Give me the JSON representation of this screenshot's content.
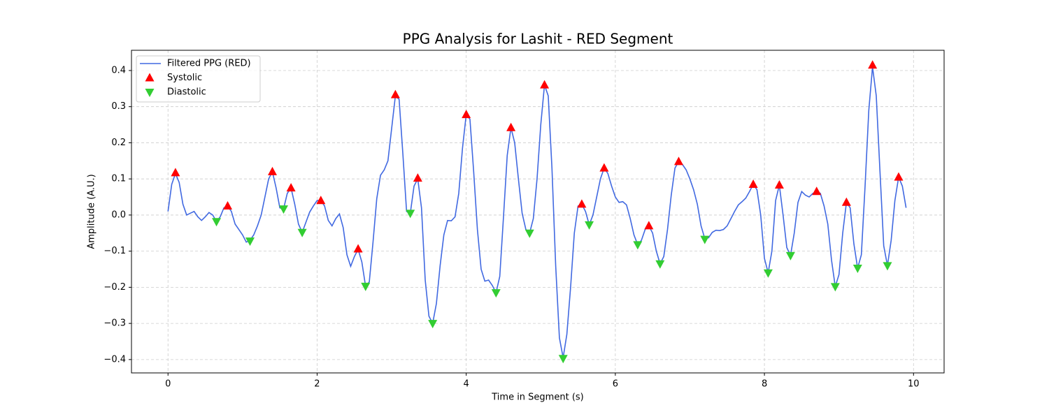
{
  "chart_data": {
    "type": "line",
    "title": "PPG Analysis for Lashit - RED Segment",
    "xlabel": "Time in Segment (s)",
    "ylabel": "Amplitude (A.U.)",
    "xlim": [
      -0.49,
      10.41
    ],
    "ylim": [
      -0.437,
      0.456
    ],
    "xticks": [
      0,
      2,
      4,
      6,
      8,
      10
    ],
    "yticks": [
      {
        "value": -0.4,
        "label": "−0.4"
      },
      {
        "value": -0.3,
        "label": "−0.3"
      },
      {
        "value": -0.2,
        "label": "−0.2"
      },
      {
        "value": -0.1,
        "label": "−0.1"
      },
      {
        "value": 0,
        "label": "0.0"
      },
      0.1,
      0.2,
      0.3,
      0.4
    ],
    "grid": true,
    "legend": "upper left",
    "series": [
      {
        "name": "Filtered PPG (RED)",
        "type": "line",
        "color": "#4169e1",
        "x": [
          0,
          0.05,
          0.1,
          0.15,
          0.2,
          0.25,
          0.3,
          0.35,
          0.4,
          0.45,
          0.5,
          0.55,
          0.6,
          0.65,
          0.7,
          0.75,
          0.8,
          0.85,
          0.9,
          0.95,
          1,
          1.05,
          1.1,
          1.15,
          1.2,
          1.25,
          1.3,
          1.35,
          1.4,
          1.45,
          1.5,
          1.55,
          1.6,
          1.65,
          1.7,
          1.75,
          1.8,
          1.85,
          1.9,
          1.95,
          2,
          2.05,
          2.1,
          2.15,
          2.2,
          2.25,
          2.3,
          2.35,
          2.4,
          2.45,
          2.5,
          2.55,
          2.6,
          2.65,
          2.7,
          2.75,
          2.8,
          2.85,
          2.9,
          2.95,
          3,
          3.05,
          3.1,
          3.15,
          3.2,
          3.25,
          3.3,
          3.35,
          3.4,
          3.45,
          3.5,
          3.55,
          3.6,
          3.65,
          3.7,
          3.75,
          3.8,
          3.85,
          3.9,
          3.95,
          4,
          4.05,
          4.1,
          4.15,
          4.2,
          4.25,
          4.3,
          4.35,
          4.4,
          4.45,
          4.5,
          4.55,
          4.6,
          4.65,
          4.7,
          4.75,
          4.8,
          4.85,
          4.9,
          4.95,
          5,
          5.05,
          5.1,
          5.15,
          5.2,
          5.25,
          5.3,
          5.35,
          5.4,
          5.45,
          5.5,
          5.55,
          5.6,
          5.65,
          5.7,
          5.75,
          5.8,
          5.85,
          5.9,
          5.95,
          6,
          6.05,
          6.1,
          6.15,
          6.2,
          6.25,
          6.3,
          6.35,
          6.4,
          6.45,
          6.5,
          6.55,
          6.6,
          6.65,
          6.7,
          6.75,
          6.8,
          6.85,
          6.9,
          6.95,
          7,
          7.05,
          7.1,
          7.15,
          7.2,
          7.25,
          7.3,
          7.35,
          7.4,
          7.45,
          7.5,
          7.55,
          7.6,
          7.65,
          7.7,
          7.75,
          7.8,
          7.85,
          7.9,
          7.95,
          8,
          8.05,
          8.1,
          8.15,
          8.2,
          8.25,
          8.3,
          8.35,
          8.4,
          8.45,
          8.5,
          8.55,
          8.6,
          8.65,
          8.7,
          8.75,
          8.8,
          8.85,
          8.9,
          8.95,
          9,
          9.05,
          9.1,
          9.15,
          9.2,
          9.25,
          9.3,
          9.35,
          9.4,
          9.45,
          9.5,
          9.55,
          9.6,
          9.65,
          9.7,
          9.75,
          9.8,
          9.85,
          9.9
        ],
        "values": [
          0.01,
          0.085,
          0.115,
          0.09,
          0.03,
          0.0,
          0.005,
          0.01,
          -0.005,
          -0.015,
          -0.005,
          0.007,
          0.0,
          -0.018,
          -0.005,
          0.02,
          0.025,
          0.01,
          -0.025,
          -0.04,
          -0.055,
          -0.075,
          -0.07,
          -0.055,
          -0.03,
          0.0,
          0.05,
          0.1,
          0.12,
          0.075,
          0.02,
          0.017,
          0.06,
          0.075,
          0.03,
          -0.025,
          -0.048,
          -0.02,
          0.008,
          0.025,
          0.04,
          0.04,
          0.025,
          -0.015,
          -0.03,
          -0.01,
          0.003,
          -0.035,
          -0.11,
          -0.142,
          -0.115,
          -0.095,
          -0.13,
          -0.197,
          -0.185,
          -0.075,
          0.045,
          0.11,
          0.125,
          0.15,
          0.24,
          0.33,
          0.32,
          0.17,
          0.01,
          0.005,
          0.08,
          0.1,
          0.02,
          -0.18,
          -0.28,
          -0.3,
          -0.245,
          -0.14,
          -0.055,
          -0.015,
          -0.016,
          -0.005,
          0.06,
          0.185,
          0.278,
          0.265,
          0.12,
          -0.04,
          -0.15,
          -0.183,
          -0.18,
          -0.195,
          -0.215,
          -0.17,
          -0.005,
          0.165,
          0.242,
          0.2,
          0.1,
          0.005,
          -0.04,
          -0.05,
          -0.01,
          0.1,
          0.25,
          0.36,
          0.33,
          0.13,
          -0.14,
          -0.34,
          -0.395,
          -0.33,
          -0.2,
          -0.05,
          0.025,
          0.03,
          0.01,
          -0.027,
          0.0,
          0.05,
          0.1,
          0.13,
          0.115,
          0.08,
          0.05,
          0.035,
          0.037,
          0.028,
          -0.01,
          -0.055,
          -0.082,
          -0.07,
          -0.04,
          -0.03,
          -0.05,
          -0.1,
          -0.135,
          -0.115,
          -0.04,
          0.055,
          0.13,
          0.148,
          0.14,
          0.125,
          0.1,
          0.07,
          0.03,
          -0.03,
          -0.065,
          -0.063,
          -0.048,
          -0.042,
          -0.043,
          -0.04,
          -0.03,
          -0.01,
          0.01,
          0.028,
          0.037,
          0.047,
          0.065,
          0.085,
          0.07,
          0.0,
          -0.12,
          -0.16,
          -0.1,
          0.04,
          0.083,
          0.0,
          -0.09,
          -0.112,
          -0.05,
          0.035,
          0.065,
          0.055,
          0.05,
          0.06,
          0.065,
          0.06,
          0.025,
          -0.025,
          -0.125,
          -0.198,
          -0.165,
          -0.05,
          0.035,
          0.02,
          -0.08,
          -0.147,
          -0.11,
          0.08,
          0.29,
          0.41,
          0.33,
          0.12,
          -0.085,
          -0.14,
          -0.07,
          0.04,
          0.105,
          0.08,
          0.02
        ]
      },
      {
        "name": "Systolic",
        "type": "scatter",
        "marker": "^",
        "color": "#ff0000",
        "x": [
          0.1,
          0.8,
          1.4,
          1.65,
          2.05,
          2.55,
          3.05,
          3.35,
          4.0,
          4.6,
          5.05,
          5.55,
          5.85,
          6.45,
          6.85,
          7.85,
          8.2,
          8.7,
          9.1,
          9.45,
          9.8
        ],
        "values": [
          0.117,
          0.025,
          0.12,
          0.075,
          0.04,
          -0.094,
          0.333,
          0.102,
          0.278,
          0.242,
          0.36,
          0.03,
          0.13,
          -0.03,
          0.148,
          0.085,
          0.083,
          0.065,
          0.035,
          0.415,
          0.105
        ]
      },
      {
        "name": "Diastolic",
        "type": "scatter",
        "marker": "v",
        "color": "#32cd32",
        "x": [
          0.65,
          1.1,
          1.55,
          1.8,
          2.65,
          3.25,
          3.55,
          4.4,
          4.85,
          5.3,
          5.65,
          6.3,
          6.6,
          7.2,
          8.05,
          8.35,
          8.95,
          9.25,
          9.65
        ],
        "values": [
          -0.018,
          -0.072,
          0.017,
          -0.048,
          -0.197,
          0.005,
          -0.3,
          -0.215,
          -0.05,
          -0.397,
          -0.027,
          -0.082,
          -0.135,
          -0.067,
          -0.16,
          -0.112,
          -0.198,
          -0.147,
          -0.14
        ]
      }
    ]
  }
}
